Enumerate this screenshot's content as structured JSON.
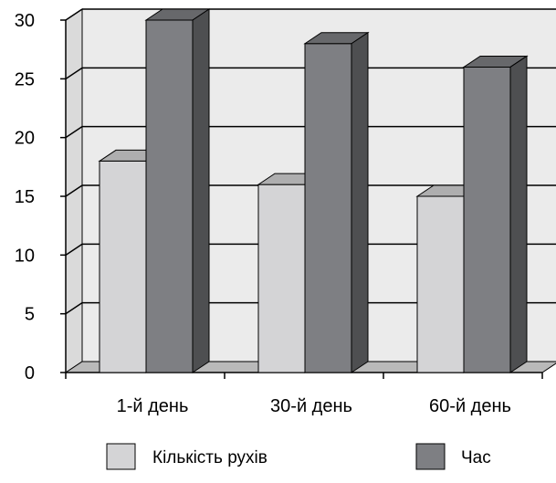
{
  "chart_data": {
    "type": "bar",
    "categories": [
      "1-й день",
      "30-й день",
      "60-й день"
    ],
    "series": [
      {
        "name": "Кількість рухів",
        "values": [
          18,
          16,
          15
        ],
        "color": "#d4d4d6"
      },
      {
        "name": "Час",
        "values": [
          30,
          28,
          26
        ],
        "color": "#7e7f83"
      }
    ],
    "ylim": [
      0,
      30
    ],
    "yticks": [
      0,
      5,
      10,
      15,
      20,
      25,
      30
    ],
    "grid": true,
    "legend_position": "bottom",
    "style": "3d-clustered"
  }
}
